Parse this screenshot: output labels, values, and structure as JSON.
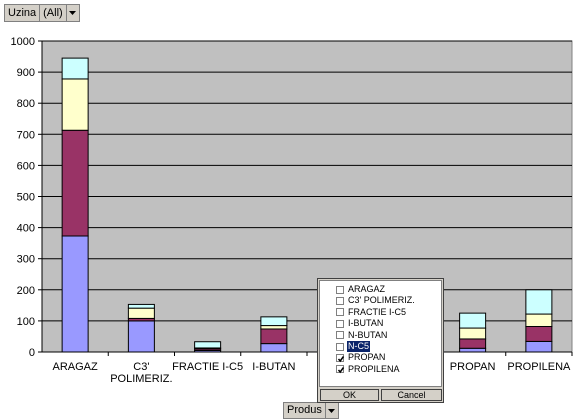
{
  "page_field": {
    "label": "Uzina",
    "value": "(All)"
  },
  "category_field": {
    "label": "Produs"
  },
  "filter_panel": {
    "items": [
      {
        "label": "ARAGAZ",
        "checked": false,
        "selected": false
      },
      {
        "label": "C3' POLIMERIZ.",
        "checked": false,
        "selected": false
      },
      {
        "label": "FRACTIE I-C5",
        "checked": false,
        "selected": false
      },
      {
        "label": "I-BUTAN",
        "checked": false,
        "selected": false
      },
      {
        "label": "N-BUTAN",
        "checked": false,
        "selected": false
      },
      {
        "label": "N-C5",
        "checked": false,
        "selected": true
      },
      {
        "label": "PROPAN",
        "checked": true,
        "selected": false
      },
      {
        "label": "PROPILENA",
        "checked": true,
        "selected": false
      }
    ],
    "ok_label": "OK",
    "cancel_label": "Cancel"
  },
  "chart_data": {
    "type": "bar",
    "stacked": true,
    "ylim": [
      0,
      1000
    ],
    "yticks": [
      0,
      100,
      200,
      300,
      400,
      500,
      600,
      700,
      800,
      900,
      1000
    ],
    "categories": [
      "ARAGAZ",
      "C3' POLIMERIZ.",
      "FRACTIE I-C5",
      "I-BUTAN",
      "N-BUTAN",
      "N-C5",
      "PROPAN",
      "PROPILENA"
    ],
    "category_tick_labels": [
      [
        "ARAGAZ"
      ],
      [
        "C3'",
        "POLIMERIZ."
      ],
      [
        "FRACTIE I-C5"
      ],
      [
        "I-BUTAN"
      ],
      [],
      [],
      [
        "PROPAN"
      ],
      [
        "PROPILENA"
      ]
    ],
    "series": [
      {
        "color": "#9999ff",
        "values": [
          373,
          100,
          5,
          27,
          null,
          null,
          12,
          34
        ]
      },
      {
        "color": "#993366",
        "values": [
          340,
          8,
          5,
          47,
          null,
          null,
          30,
          48
        ]
      },
      {
        "color": "#ffffcc",
        "values": [
          165,
          33,
          3,
          11,
          null,
          null,
          35,
          40
        ]
      },
      {
        "color": "#ccffff",
        "values": [
          67,
          12,
          20,
          28,
          null,
          null,
          48,
          78
        ]
      }
    ],
    "grid": true,
    "plot_background": "#c0c0c0"
  }
}
